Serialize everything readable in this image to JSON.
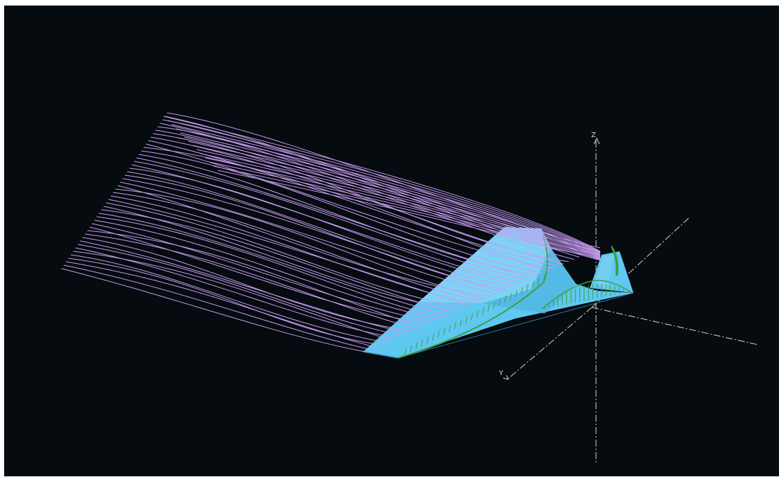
{
  "viewport": {
    "background": "#050b0e",
    "streamline_color": "#c79cf2",
    "surface_color": "#5fc8f0",
    "pressure_vector_color": "#3f9f3f",
    "axis_color": "#d8d8d8"
  },
  "axes": {
    "z_label": "Z",
    "y_label": "Y"
  }
}
